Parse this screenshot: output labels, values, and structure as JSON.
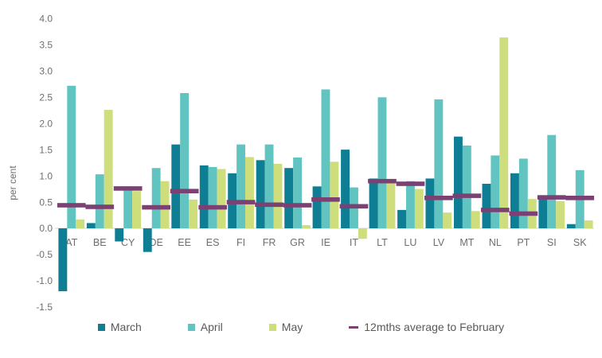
{
  "chart_data": {
    "type": "bar",
    "title": "",
    "xlabel": "",
    "ylabel": "per cent",
    "ylim": [
      -1.5,
      4.0
    ],
    "ytick_step": 0.5,
    "ytick_labels": [
      "4.0",
      "3.5",
      "3.0",
      "2.5",
      "2.0",
      "1.5",
      "1.0",
      "0.5",
      "0.0",
      "-0.5",
      "-1.0",
      "-1.5"
    ],
    "grid": "zero-baseline-only",
    "legend_position": "bottom",
    "categories": [
      "AT",
      "BE",
      "CY",
      "DE",
      "EE",
      "ES",
      "FI",
      "FR",
      "GR",
      "IE",
      "IT",
      "LT",
      "LU",
      "LV",
      "MT",
      "NL",
      "PT",
      "SI",
      "SK"
    ],
    "series": [
      {
        "name": "March",
        "color": "#0e7e95",
        "values": [
          -1.2,
          0.1,
          -0.25,
          -0.45,
          1.6,
          1.2,
          1.05,
          1.3,
          1.15,
          0.8,
          1.5,
          0.95,
          0.35,
          0.95,
          1.75,
          0.85,
          1.05,
          0.6,
          0.08
        ]
      },
      {
        "name": "April",
        "color": "#62c4c0",
        "values": [
          2.72,
          1.03,
          0.72,
          1.15,
          2.58,
          1.17,
          1.6,
          1.6,
          1.35,
          2.65,
          0.78,
          2.5,
          0.9,
          2.46,
          1.58,
          1.39,
          1.33,
          1.78,
          1.11
        ]
      },
      {
        "name": "May",
        "color": "#cede7d",
        "values": [
          0.17,
          2.26,
          0.71,
          0.9,
          0.55,
          1.13,
          1.36,
          1.23,
          0.06,
          1.27,
          -0.2,
          0.88,
          0.75,
          0.3,
          0.33,
          3.64,
          0.56,
          0.52,
          0.15
        ]
      }
    ],
    "marker_series": {
      "name": "12mths average to February",
      "color": "#7b4173",
      "values": [
        0.44,
        0.41,
        0.76,
        0.4,
        0.71,
        0.4,
        0.5,
        0.45,
        0.44,
        0.55,
        0.42,
        0.9,
        0.85,
        0.58,
        0.62,
        0.35,
        0.28,
        0.59,
        0.58
      ]
    }
  },
  "axis_text_color": "#6e6e6e",
  "baseline_color": "#d6d6d6"
}
